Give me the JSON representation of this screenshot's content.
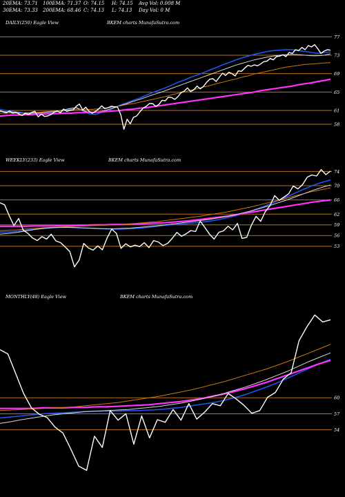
{
  "header": {
    "ema20": "20EMA: 73.71",
    "ema100": "100EMA: 71.37",
    "open": "O: 74.15",
    "high": "H: 74.15",
    "avg_vol": "Avg Vol: 0.008 M",
    "ema30": "30EMA: 73.33",
    "ema200": "200EMA: 68.46",
    "close": "C: 74.13",
    "low": "L: 74.13",
    "day_vol": "Day Vol: 0  M"
  },
  "colors": {
    "background": "#000000",
    "price": "#ffffff",
    "grid": "#b8731f",
    "blue_ma": "#2255ee",
    "magenta_ma": "#ff33ff",
    "orange_ma": "#cc7711",
    "white_ma": "#d8d8d8"
  },
  "chart_data": [
    {
      "type": "line",
      "left_title": "DAILY(250) Eagle  View",
      "center_title": "BKEM charts MunafaSutra.com",
      "y_ticks": [
        "77",
        "73",
        "69",
        "65",
        "61",
        "58"
      ],
      "ylim": [
        55,
        79
      ],
      "series": [
        {
          "role": "price",
          "color": "#ffffff",
          "values": [
            60.9,
            60.7,
            60.5,
            60.9,
            60.4,
            60.6,
            60.2,
            59.9,
            60.4,
            60.1,
            60.6,
            60.8,
            59.6,
            60.2,
            59.7,
            59.8,
            60.1,
            60.6,
            60.9,
            60.5,
            61.3,
            60.8,
            61.0,
            61.1,
            61.9,
            62.4,
            61.1,
            61.7,
            60.8,
            60.4,
            60.8,
            61.3,
            62.0,
            61.4,
            61.6,
            61.9,
            61.8,
            61.7,
            60.1,
            56.9,
            59.1,
            58.1,
            59.5,
            59.8,
            60.7,
            61.5,
            61.9,
            62.5,
            62.5,
            61.9,
            62.3,
            63.2,
            63.1,
            63.9,
            63.8,
            63.4,
            64.0,
            64.9,
            65.2,
            65.9,
            65.1,
            65.5,
            66.3,
            65.7,
            66.2,
            67.1,
            67.8,
            67.9,
            67.3,
            68.2,
            69.1,
            68.6,
            69.3,
            69.0,
            68.5,
            69.6,
            69.5,
            70.2,
            70.8,
            70.6,
            70.9,
            70.7,
            71.1,
            71.6,
            71.7,
            72.3,
            72.0,
            72.7,
            72.8,
            73.1,
            72.7,
            73.6,
            73.4,
            74.2,
            74.0,
            74.7,
            74.2,
            75.1,
            74.8,
            75.3,
            74.4,
            73.4,
            73.9,
            74.2,
            74.1
          ]
        },
        {
          "role": "ema20",
          "color": "#2255ee",
          "values": [
            61.2,
            61.0,
            60.8,
            60.6,
            60.4,
            60.4,
            60.4,
            60.5,
            60.6,
            60.7,
            60.9,
            61.3,
            61.6,
            60.9,
            60.3,
            60.1,
            60.6,
            61.0,
            61.6,
            62.2,
            62.7,
            63.2,
            63.7,
            64.3,
            64.9,
            65.4,
            65.9,
            66.5,
            67.1,
            67.6,
            68.2,
            68.7,
            69.2,
            69.8,
            70.3,
            70.9,
            71.4,
            71.9,
            72.4,
            72.8,
            73.2,
            73.5,
            73.8,
            74.0,
            74.1,
            74.2,
            74.2,
            74.0,
            73.8,
            73.6,
            73.4,
            73.6,
            73.7
          ]
        },
        {
          "role": "ema30",
          "color": "#d8d8d8",
          "values": [
            60.8,
            60.7,
            60.6,
            60.5,
            60.4,
            60.4,
            60.5,
            60.6,
            60.7,
            60.9,
            61.1,
            61.4,
            61.6,
            61.0,
            60.6,
            60.5,
            60.8,
            61.2,
            61.6,
            62.1,
            62.5,
            63.0,
            63.4,
            63.9,
            64.4,
            64.8,
            65.3,
            65.8,
            66.3,
            66.8,
            67.3,
            67.8,
            68.3,
            68.8,
            69.3,
            69.8,
            70.3,
            70.8,
            71.2,
            71.6,
            72.0,
            72.3,
            72.6,
            72.8,
            73.0,
            73.1,
            73.2,
            73.1,
            73.0,
            72.9,
            72.9,
            73.0,
            73.3
          ]
        },
        {
          "role": "ema100",
          "color": "#cc7711",
          "values": [
            60.4,
            60.4,
            60.4,
            60.4,
            60.5,
            60.5,
            60.6,
            60.7,
            60.8,
            60.9,
            61.0,
            61.1,
            61.2,
            61.2,
            61.2,
            61.3,
            61.4,
            61.6,
            61.8,
            62.0,
            62.3,
            62.5,
            62.8,
            63.1,
            63.4,
            63.7,
            64.0,
            64.4,
            64.7,
            65.0,
            65.4,
            65.7,
            66.1,
            66.4,
            66.8,
            67.1,
            67.5,
            67.8,
            68.2,
            68.5,
            68.9,
            69.2,
            69.5,
            69.8,
            70.1,
            70.4,
            70.6,
            70.8,
            71.0,
            71.1,
            71.2,
            71.3,
            71.4
          ]
        },
        {
          "role": "ema200",
          "color": "#ff33ff",
          "values": [
            59.8,
            59.9,
            60.0,
            60.0,
            60.1,
            60.1,
            60.2,
            60.2,
            60.3,
            60.3,
            60.4,
            60.4,
            60.5,
            60.5,
            60.6,
            60.6,
            60.7,
            60.8,
            60.9,
            61.0,
            61.2,
            61.3,
            61.5,
            61.6,
            61.8,
            62.0,
            62.2,
            62.4,
            62.6,
            62.8,
            63.0,
            63.2,
            63.4,
            63.6,
            63.8,
            64.0,
            64.2,
            64.4,
            64.6,
            64.8,
            65.0,
            65.3,
            65.5,
            65.7,
            65.9,
            66.1,
            66.3,
            66.6,
            66.8,
            67.0,
            67.3,
            67.5,
            67.8
          ]
        }
      ]
    },
    {
      "type": "line",
      "left_title": "WEEKLY(233) Eagle  View",
      "center_title": "BKEM charts MunafaSutra.com",
      "y_ticks": [
        "74",
        "70",
        "66",
        "62",
        "59",
        "56",
        "53"
      ],
      "ylim": [
        45,
        76
      ],
      "series": [
        {
          "role": "price",
          "color": "#ffffff",
          "values": [
            65.2,
            64.6,
            61.5,
            58.8,
            60.8,
            57.5,
            56.6,
            55.3,
            54.6,
            55.7,
            55.0,
            56.4,
            54.5,
            54.0,
            52.8,
            51.5,
            47.2,
            49.1,
            53.8,
            52.5,
            51.9,
            53.1,
            52.0,
            55.3,
            57.8,
            56.6,
            52.4,
            53.7,
            52.8,
            53.3,
            52.9,
            54.0,
            52.6,
            54.6,
            54.2,
            53.2,
            53.8,
            55.2,
            56.9,
            55.8,
            56.5,
            57.4,
            57.1,
            60.1,
            58.3,
            56.4,
            55.0,
            56.9,
            57.3,
            58.6,
            57.6,
            59.4,
            55.2,
            55.5,
            58.9,
            61.4,
            60.0,
            62.7,
            64.4,
            67.2,
            65.9,
            66.8,
            67.7,
            69.9,
            69.1,
            70.3,
            72.4,
            73.0,
            72.7,
            74.5,
            73.1,
            74.1
          ]
        },
        {
          "role": "ema20",
          "color": "#2255ee",
          "values": [
            57.0,
            57.0,
            57.2,
            57.5,
            57.8,
            58.0,
            58.2,
            58.3,
            58.3,
            58.2,
            58.1,
            58.0,
            57.9,
            57.8,
            57.8,
            57.9,
            58.1,
            58.3,
            58.6,
            58.9,
            59.1,
            59.3,
            59.5,
            59.7,
            60.0,
            60.4,
            60.9,
            61.5,
            62.2,
            63.0,
            63.9,
            64.8,
            65.8,
            66.9,
            68.0,
            69.1,
            70.1,
            70.9,
            71.6
          ]
        },
        {
          "role": "ema200",
          "color": "#ff33ff",
          "values": [
            58.6,
            58.6,
            58.6,
            58.6,
            58.7,
            58.7,
            58.7,
            58.8,
            58.8,
            58.9,
            58.9,
            59.0,
            59.0,
            59.1,
            59.1,
            59.2,
            59.3,
            59.4,
            59.5,
            59.6,
            59.8,
            60.0,
            60.2,
            60.5,
            60.8,
            61.1,
            61.4,
            61.8,
            62.2,
            62.6,
            63.0,
            63.4,
            63.8,
            64.2,
            64.6,
            65.0,
            65.4,
            65.7,
            66.0
          ]
        },
        {
          "role": "ema100",
          "color": "#cc7711",
          "values": [
            57.4,
            57.5,
            57.6,
            57.8,
            58.0,
            58.2,
            58.3,
            58.4,
            58.5,
            58.6,
            58.7,
            58.8,
            58.9,
            59.0,
            59.1,
            59.3,
            59.5,
            59.7,
            59.9,
            60.2,
            60.5,
            60.8,
            61.1,
            61.4,
            61.8,
            62.2,
            62.6,
            63.1,
            63.6,
            64.1,
            64.7,
            65.3,
            65.9,
            66.5,
            67.2,
            67.8,
            68.4,
            68.9,
            69.4
          ]
        },
        {
          "role": "ema30",
          "color": "#d8d8d8",
          "values": [
            56.4,
            56.6,
            56.9,
            57.3,
            57.7,
            58.0,
            58.2,
            58.3,
            58.3,
            58.2,
            58.1,
            58.0,
            57.9,
            57.9,
            58.0,
            58.1,
            58.3,
            58.5,
            58.7,
            59.0,
            59.3,
            59.6,
            59.9,
            60.2,
            60.5,
            60.9,
            61.3,
            61.8,
            62.4,
            63.0,
            63.7,
            64.4,
            65.2,
            66.0,
            66.9,
            67.8,
            68.7,
            69.5,
            70.2
          ]
        }
      ]
    },
    {
      "type": "line",
      "left_title": "MONTHLY(48) Eagle  View",
      "center_title": "BKEM charts MunafaSutra.com",
      "y_ticks": [
        "60",
        "57",
        "54"
      ],
      "ylim": [
        44,
        78
      ],
      "series": [
        {
          "role": "price",
          "color": "#ffffff",
          "values": [
            69.0,
            68.2,
            64.5,
            60.8,
            58.1,
            56.9,
            56.3,
            54.5,
            53.4,
            50.4,
            47.2,
            46.4,
            52.8,
            50.7,
            57.6,
            55.8,
            57.0,
            51.3,
            56.6,
            52.5,
            55.9,
            55.4,
            57.8,
            55.8,
            58.9,
            56.0,
            57.3,
            58.9,
            58.5,
            60.8,
            59.8,
            58.6,
            57.1,
            57.6,
            60.1,
            61.0,
            63.5,
            64.7,
            70.7,
            73.3,
            75.5,
            74.2,
            74.6
          ]
        },
        {
          "role": "ema20",
          "color": "#2255ee",
          "values": [
            56.2,
            56.4,
            56.6,
            56.8,
            57.0,
            57.1,
            57.2,
            57.3,
            57.4,
            57.5,
            57.5,
            57.5,
            57.6,
            57.6,
            57.7,
            57.8,
            58.0,
            58.2,
            58.5,
            58.8,
            59.1,
            59.5,
            60.0,
            60.6,
            61.3,
            62.0,
            62.8,
            63.7,
            64.6,
            65.5,
            66.4,
            67.2
          ]
        },
        {
          "role": "ema200",
          "color": "#ff33ff",
          "values": [
            58.0,
            58.0,
            58.0,
            58.0,
            58.1,
            58.1,
            58.1,
            58.2,
            58.2,
            58.3,
            58.3,
            58.4,
            58.5,
            58.6,
            58.7,
            58.9,
            59.1,
            59.3,
            59.6,
            59.9,
            60.3,
            60.7,
            61.2,
            61.7,
            62.3,
            62.9,
            63.6,
            64.3,
            65.0,
            65.7,
            66.4,
            67.0
          ]
        },
        {
          "role": "ema100",
          "color": "#cc7711",
          "values": [
            57.6,
            57.7,
            57.8,
            57.9,
            58.0,
            58.1,
            58.2,
            58.3,
            58.5,
            58.7,
            58.9,
            59.1,
            59.4,
            59.7,
            60.0,
            60.3,
            60.7,
            61.1,
            61.5,
            62.0,
            62.5,
            63.0,
            63.6,
            64.2,
            64.8,
            65.4,
            66.1,
            66.8,
            67.6,
            68.4,
            69.2,
            70.0
          ]
        },
        {
          "role": "ema30",
          "color": "#d8d8d8",
          "values": [
            55.2,
            55.5,
            55.9,
            56.2,
            56.5,
            56.8,
            57.0,
            57.2,
            57.4,
            57.5,
            57.6,
            57.7,
            57.8,
            58.0,
            58.2,
            58.4,
            58.7,
            59.0,
            59.4,
            59.8,
            60.3,
            60.8,
            61.4,
            62.0,
            62.7,
            63.4,
            64.2,
            65.0,
            65.9,
            66.8,
            67.6,
            68.4
          ]
        }
      ]
    }
  ]
}
